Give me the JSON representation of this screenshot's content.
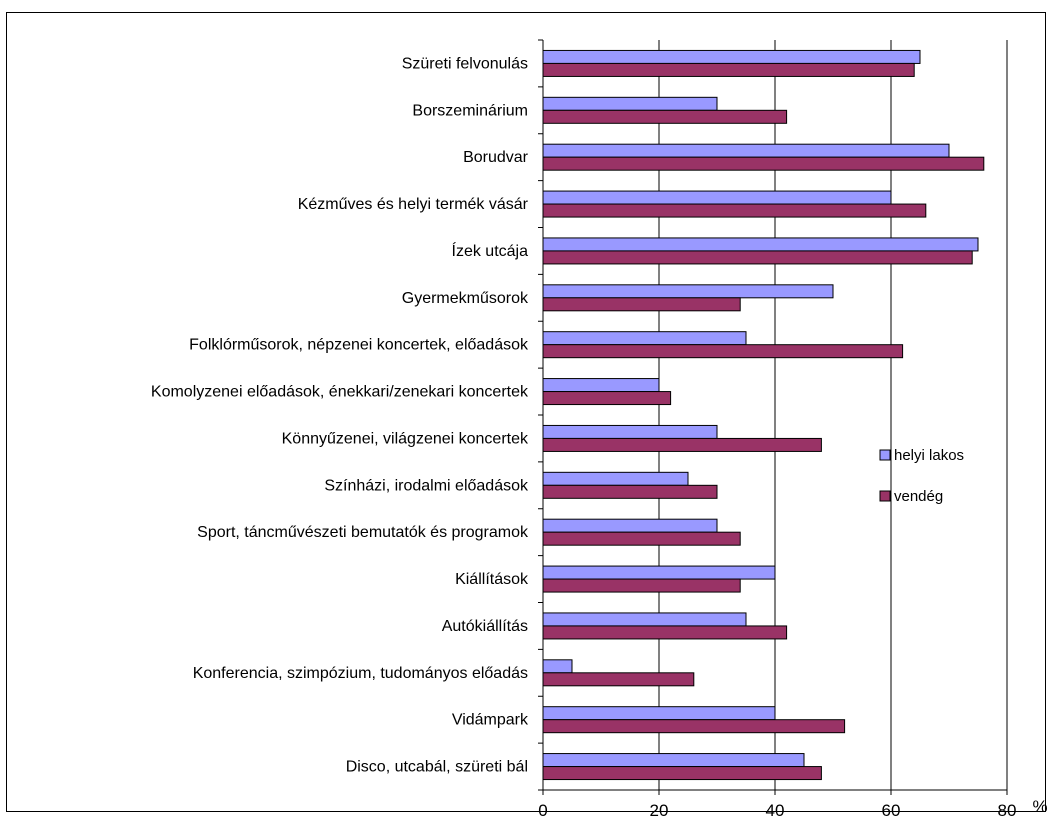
{
  "chart_data": {
    "type": "bar",
    "orientation": "horizontal",
    "categories": [
      "Szüreti felvonulás",
      "Borszeminárium",
      "Borudvar",
      "Kézműves és helyi termék vásár",
      "Ízek utcája",
      "Gyermekműsorok",
      "Folklórműsorok, népzenei koncertek, előadások",
      "Komolyzenei előadások, énekkari/zenekari koncertek",
      "Könnyűzenei, világzenei koncertek",
      "Színházi, irodalmi előadások",
      "Sport, táncművészeti bemutatók és programok",
      "Kiállítások",
      "Autókiállítás",
      "Konferencia, szimpózium, tudományos előadás",
      "Vidámpark",
      "Disco, utcabál, szüreti bál"
    ],
    "series": [
      {
        "name": "helyi lakos",
        "color": "#9999ff",
        "values": [
          65,
          30,
          70,
          60,
          75,
          50,
          35,
          20,
          30,
          25,
          30,
          40,
          35,
          5,
          40,
          45
        ]
      },
      {
        "name": "vendég",
        "color": "#993366",
        "values": [
          64,
          42,
          76,
          66,
          74,
          34,
          62,
          22,
          48,
          30,
          34,
          34,
          42,
          26,
          52,
          48
        ]
      }
    ],
    "xlim": [
      0,
      80
    ],
    "xticks": [
      "0",
      "20",
      "40",
      "60",
      "80"
    ],
    "unit_label": "%",
    "grid": "vertical",
    "legend_position": "right"
  }
}
